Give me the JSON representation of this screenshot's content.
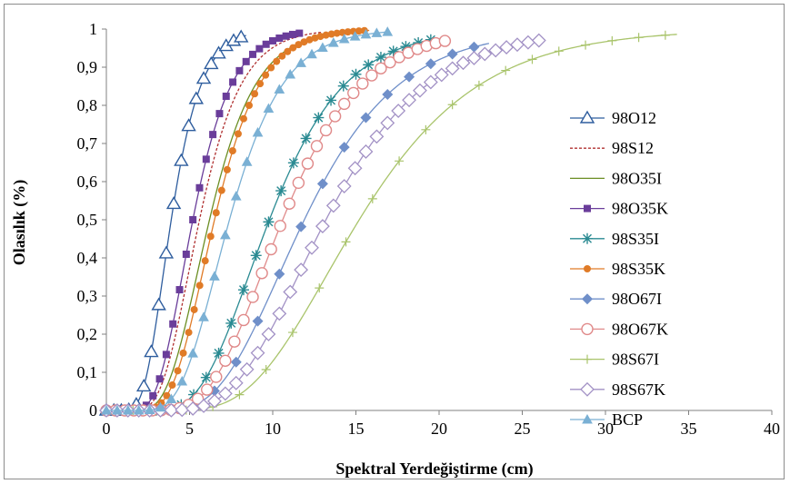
{
  "chart_data": {
    "type": "line",
    "xlabel": "Spektral Yerdeğiştirme (cm)",
    "ylabel": "Olasılık (%)",
    "xlim": [
      0,
      40
    ],
    "ylim": [
      0,
      1
    ],
    "x_ticks": [
      0,
      5,
      10,
      15,
      20,
      25,
      30,
      35,
      40
    ],
    "x_tick_labels": [
      "0",
      "5",
      "10",
      "15",
      "20",
      "25",
      "30",
      "35",
      "40"
    ],
    "y_ticks": [
      0,
      0.1,
      0.2,
      0.3,
      0.4,
      0.5,
      0.6,
      0.7,
      0.8,
      0.9,
      1
    ],
    "y_tick_labels": [
      "0",
      "0,1",
      "0,2",
      "0,3",
      "0,4",
      "0,5",
      "0,6",
      "0,7",
      "0,8",
      "0,9",
      "1"
    ],
    "grid": false,
    "legend_position": "right",
    "series": [
      {
        "name": "98O12",
        "color": "#2e5d9e",
        "marker": "triangle-open",
        "median": 3.9,
        "beta": 0.36,
        "xmax": 8.4,
        "step": 0.45,
        "dash": ""
      },
      {
        "name": "98S12",
        "color": "#b03030",
        "marker": "none",
        "median": 5.6,
        "beta": 0.35,
        "xmax": 13.0,
        "step": 0.5,
        "dash": "3,2"
      },
      {
        "name": "98O35I",
        "color": "#6b8e23",
        "marker": "none",
        "median": 6.2,
        "beta": 0.35,
        "xmax": 15.6,
        "step": 0.5,
        "dash": ""
      },
      {
        "name": "98O35K",
        "color": "#6a3d9a",
        "marker": "square-filled",
        "median": 5.2,
        "beta": 0.35,
        "xmax": 11.8,
        "step": 0.4,
        "dash": ""
      },
      {
        "name": "98S35I",
        "color": "#2a8a92",
        "marker": "asterisk",
        "median": 9.8,
        "beta": 0.36,
        "xmax": 19.7,
        "step": 0.75,
        "dash": ""
      },
      {
        "name": "98S35K",
        "color": "#e07b27",
        "marker": "circle-filled",
        "median": 6.5,
        "beta": 0.33,
        "xmax": 15.8,
        "step": 0.33,
        "dash": ""
      },
      {
        "name": "98O67I",
        "color": "#6f8fc9",
        "marker": "diamond-filled",
        "median": 11.9,
        "beta": 0.37,
        "xmax": 23.0,
        "step": 1.3,
        "dash": ""
      },
      {
        "name": "98O67K",
        "color": "#e08a8a",
        "marker": "circle-open",
        "median": 10.6,
        "beta": 0.35,
        "xmax": 20.4,
        "step": 0.55,
        "dash": ""
      },
      {
        "name": "98S67I",
        "color": "#a9c46b",
        "marker": "plus",
        "median": 15.2,
        "beta": 0.37,
        "xmax": 34.3,
        "step": 1.6,
        "dash": ""
      },
      {
        "name": "98S67K",
        "color": "#a291c5",
        "marker": "diamond-open",
        "median": 13.2,
        "beta": 0.36,
        "xmax": 26.1,
        "step": 0.65,
        "dash": ""
      },
      {
        "name": "BCP",
        "color": "#7ab0d4",
        "marker": "triangle-filled",
        "median": 7.4,
        "beta": 0.34,
        "xmax": 17.0,
        "step": 0.65,
        "dash": ""
      }
    ]
  }
}
